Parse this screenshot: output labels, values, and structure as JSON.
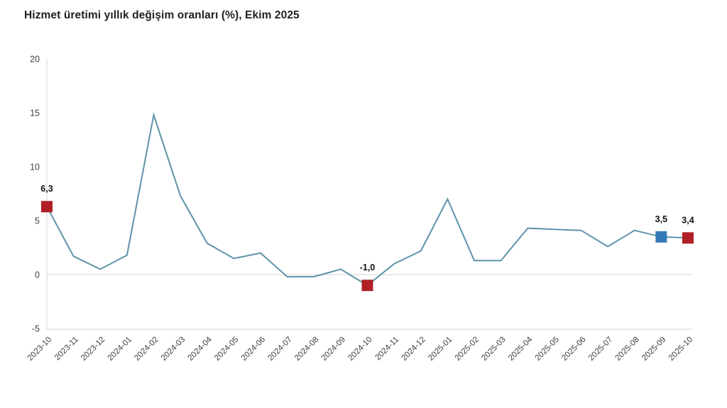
{
  "title": "Hizmet üretimi yıllık değişim oranları (%), Ekim 2025",
  "chart_data": {
    "type": "line",
    "title": "Hizmet üretimi yıllık değişim oranları (%), Ekim 2025",
    "categories": [
      "2023-10",
      "2023-11",
      "2023-12",
      "2024-01",
      "2024-02",
      "2024-03",
      "2024-04",
      "2024-05",
      "2024-06",
      "2024-07",
      "2024-08",
      "2024-09",
      "2024-10",
      "2024-11",
      "2024-12",
      "2025-01",
      "2025-02",
      "2025-03",
      "2025-04",
      "2025-05",
      "2025-06",
      "2025-07",
      "2025-08",
      "2025-09",
      "2025-10"
    ],
    "values": [
      6.3,
      1.7,
      0.5,
      1.8,
      14.8,
      7.3,
      2.9,
      1.5,
      2.0,
      -0.2,
      -0.2,
      0.5,
      -1.0,
      1.0,
      2.2,
      7.0,
      1.3,
      1.3,
      4.3,
      4.2,
      4.1,
      2.6,
      4.1,
      3.5,
      3.4
    ],
    "ylim": [
      -5,
      20
    ],
    "yticks": [
      20,
      15,
      10,
      5,
      0,
      -5
    ],
    "xlabel": "",
    "ylabel": "",
    "legend": "none",
    "grid": "horizontal lines at 0 and -5 only, vertical axis line at first category",
    "line_color": "#5e93a9",
    "gridline_color": "#dcdcdc",
    "tick_label_color": "#404040",
    "data_label_color": "#111111",
    "annotations": [
      {
        "index": 0,
        "label": "6,3",
        "marker_color": "#b01f26"
      },
      {
        "index": 12,
        "label": "-1,0",
        "marker_color": "#b01f26"
      },
      {
        "index": 23,
        "label": "3,5",
        "marker_color": "#3379b8"
      },
      {
        "index": 24,
        "label": "3,4",
        "marker_color": "#b01f26"
      }
    ]
  }
}
